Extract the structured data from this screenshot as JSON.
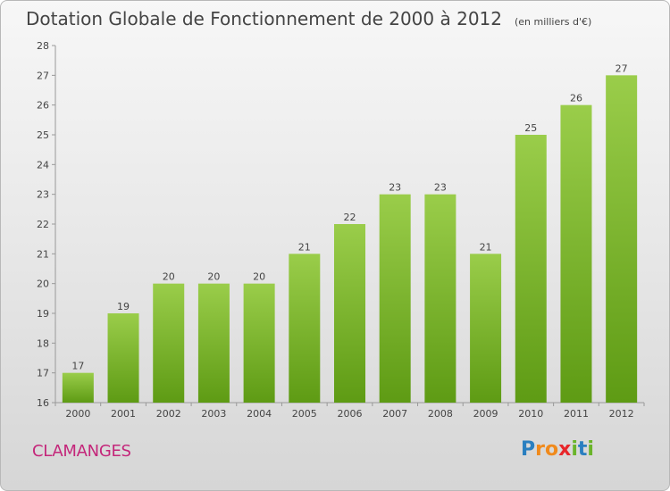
{
  "title": "Dotation Globale de Fonctionnement de 2000 à 2012",
  "unit": "(en milliers d'€)",
  "commune": "CLAMANGES",
  "logo": {
    "letters": [
      {
        "ch": "P",
        "color": "#2a7fc0"
      },
      {
        "ch": "r",
        "color": "#f08a1c"
      },
      {
        "ch": "o",
        "color": "#f08a1c"
      },
      {
        "ch": "x",
        "color": "#e8262a"
      },
      {
        "ch": "i",
        "color": "#6ab42a"
      },
      {
        "ch": "t",
        "color": "#2a7fc0"
      },
      {
        "ch": "i",
        "color": "#6ab42a"
      }
    ]
  },
  "chart_data": {
    "type": "bar",
    "categories": [
      "2000",
      "2001",
      "2002",
      "2003",
      "2004",
      "2005",
      "2006",
      "2007",
      "2008",
      "2009",
      "2010",
      "2011",
      "2012"
    ],
    "values": [
      17,
      19,
      20,
      20,
      20,
      21,
      22,
      23,
      23,
      21,
      25,
      26,
      27
    ],
    "ylim": [
      16,
      28
    ],
    "yticks": [
      16,
      17,
      18,
      19,
      20,
      21,
      22,
      23,
      24,
      25,
      26,
      27,
      28
    ],
    "grid": false,
    "bar_color_top": "#9acd4a",
    "bar_color_bottom": "#5e9b14"
  }
}
